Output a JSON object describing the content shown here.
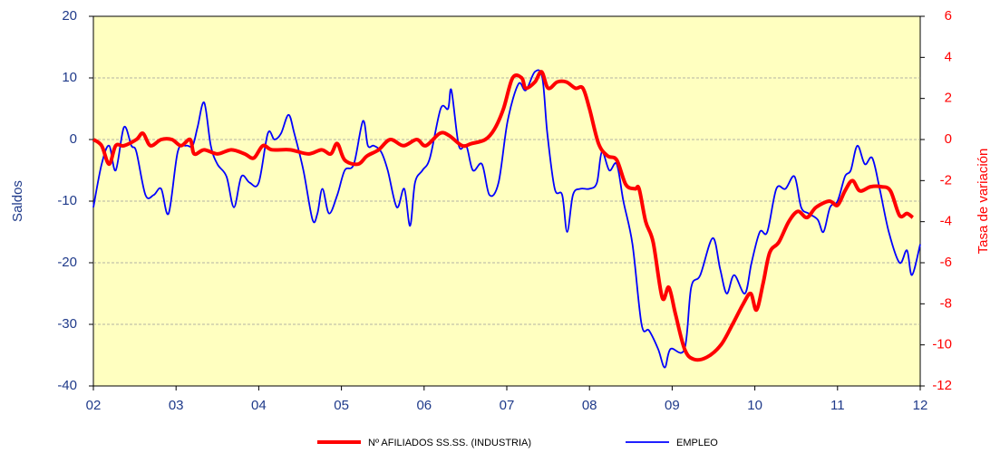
{
  "chart_data": {
    "type": "line",
    "ylabel": "Saldos",
    "y2label": "Tasa de variación",
    "xlim": [
      2,
      12
    ],
    "xticks": [
      {
        "value": 2,
        "label": "02"
      },
      {
        "value": 3,
        "label": "03"
      },
      {
        "value": 4,
        "label": "04"
      },
      {
        "value": 5,
        "label": "05"
      },
      {
        "value": 6,
        "label": "06"
      },
      {
        "value": 7,
        "label": "07"
      },
      {
        "value": 8,
        "label": "08"
      },
      {
        "value": 9,
        "label": "09"
      },
      {
        "value": 10,
        "label": "10"
      },
      {
        "value": 11,
        "label": "11"
      },
      {
        "value": 12,
        "label": "12"
      }
    ],
    "ylim": [
      -40,
      20
    ],
    "yticks": [
      -40,
      -30,
      -20,
      -10,
      0,
      10,
      20
    ],
    "y2lim": [
      -12,
      6
    ],
    "y2ticks": [
      -12,
      -10,
      -8,
      -6,
      -4,
      -2,
      0,
      2,
      4,
      6
    ],
    "grid": true,
    "background": "#ffffc0",
    "series": [
      {
        "name": "Nº AFILIADOS SS.SS. (INDUSTRIA)",
        "color": "#ff0000",
        "axis": "y2",
        "width": 4,
        "x": [
          2.0,
          2.1,
          2.19,
          2.27,
          2.37,
          2.52,
          2.6,
          2.69,
          2.82,
          2.95,
          3.06,
          3.17,
          3.22,
          3.34,
          3.5,
          3.67,
          3.83,
          3.94,
          4.05,
          4.16,
          4.38,
          4.6,
          4.76,
          4.87,
          4.95,
          5.04,
          5.2,
          5.31,
          5.45,
          5.59,
          5.75,
          5.91,
          6.02,
          6.19,
          6.3,
          6.46,
          6.57,
          6.74,
          6.85,
          6.96,
          7.07,
          7.18,
          7.23,
          7.34,
          7.42,
          7.5,
          7.61,
          7.72,
          7.83,
          7.92,
          8.0,
          8.11,
          8.22,
          8.33,
          8.44,
          8.55,
          8.6,
          8.68,
          8.77,
          8.88,
          8.96,
          9.04,
          9.15,
          9.26,
          9.42,
          9.59,
          9.73,
          9.86,
          9.95,
          10.02,
          10.1,
          10.18,
          10.29,
          10.41,
          10.52,
          10.63,
          10.74,
          10.9,
          11.0,
          11.09,
          11.18,
          11.27,
          11.4,
          11.53,
          11.64,
          11.75,
          11.84,
          11.91
        ],
        "values": [
          0,
          -0.3,
          -1.2,
          -0.3,
          -0.3,
          0,
          0.3,
          -0.3,
          0,
          0,
          -0.3,
          0,
          -0.7,
          -0.5,
          -0.7,
          -0.5,
          -0.7,
          -0.9,
          -0.3,
          -0.5,
          -0.5,
          -0.7,
          -0.5,
          -0.7,
          -0.2,
          -1.0,
          -1.2,
          -0.8,
          -0.5,
          0,
          -0.3,
          0,
          -0.3,
          0.3,
          0.2,
          -0.3,
          -0.2,
          0,
          0.5,
          1.5,
          3,
          3,
          2.5,
          2.8,
          3.3,
          2.5,
          2.8,
          2.8,
          2.5,
          2.5,
          1.5,
          -0.2,
          -0.8,
          -1.0,
          -2.2,
          -2.4,
          -2.4,
          -4,
          -5,
          -7.7,
          -7.2,
          -8.5,
          -10.2,
          -10.7,
          -10.6,
          -10.0,
          -9.0,
          -8.0,
          -7.5,
          -8.3,
          -7.0,
          -5.5,
          -5,
          -4,
          -3.5,
          -3.8,
          -3.3,
          -3,
          -3.2,
          -2.5,
          -2.0,
          -2.5,
          -2.3,
          -2.3,
          -2.5,
          -3.7,
          -3.6,
          -3.8
        ]
      },
      {
        "name": "EMPLEO",
        "color": "#0000ff",
        "width": 1.8,
        "x": [
          2.0,
          2.1,
          2.19,
          2.27,
          2.37,
          2.46,
          2.52,
          2.63,
          2.73,
          2.82,
          2.91,
          3.02,
          3.12,
          3.2,
          3.26,
          3.34,
          3.42,
          3.5,
          3.61,
          3.7,
          3.79,
          3.89,
          4.0,
          4.11,
          4.19,
          4.27,
          4.36,
          4.43,
          4.54,
          4.65,
          4.71,
          4.77,
          4.85,
          4.95,
          5.04,
          5.15,
          5.26,
          5.32,
          5.39,
          5.48,
          5.56,
          5.67,
          5.76,
          5.83,
          5.89,
          5.98,
          6.07,
          6.2,
          6.29,
          6.33,
          6.42,
          6.51,
          6.59,
          6.7,
          6.79,
          6.9,
          7.01,
          7.14,
          7.23,
          7.34,
          7.43,
          7.49,
          7.58,
          7.67,
          7.73,
          7.8,
          7.89,
          8.0,
          8.09,
          8.15,
          8.24,
          8.33,
          8.41,
          8.52,
          8.63,
          8.72,
          8.83,
          8.91,
          8.98,
          9.15,
          9.23,
          9.34,
          9.49,
          9.58,
          9.66,
          9.75,
          9.88,
          9.96,
          10.06,
          10.15,
          10.26,
          10.37,
          10.48,
          10.56,
          10.65,
          10.76,
          10.83,
          10.91,
          11.0,
          11.09,
          11.16,
          11.24,
          11.33,
          11.42,
          11.51,
          11.62,
          11.75,
          11.84,
          11.9,
          12.0
        ],
        "values": [
          -11,
          -4,
          -1,
          -5,
          2,
          -1,
          -2,
          -9,
          -9,
          -8,
          -12,
          -2,
          -1,
          -1,
          2,
          6,
          -1,
          -4,
          -6,
          -11,
          -6,
          -7,
          -7,
          1,
          0,
          1,
          4,
          1,
          -5,
          -13,
          -12,
          -8,
          -12,
          -9,
          -5,
          -4,
          3,
          -1,
          -1,
          -2,
          -5,
          -11,
          -8,
          -14,
          -7,
          -5,
          -3,
          5,
          5,
          8,
          -1,
          -1,
          -5,
          -4,
          -9,
          -7,
          3,
          9,
          8,
          11,
          10,
          1,
          -8,
          -9,
          -15,
          -9,
          -8,
          -8,
          -7,
          -2,
          -5,
          -4,
          -10,
          -17,
          -30,
          -31,
          -34,
          -37,
          -34,
          -34,
          -24,
          -22,
          -16,
          -21,
          -25,
          -22,
          -25,
          -20,
          -15,
          -15,
          -8,
          -8,
          -6,
          -11,
          -12,
          -13,
          -15,
          -11,
          -10,
          -6,
          -5,
          -1,
          -4,
          -3,
          -8,
          -15,
          -20,
          -18,
          -22,
          -17
        ]
      }
    ]
  }
}
